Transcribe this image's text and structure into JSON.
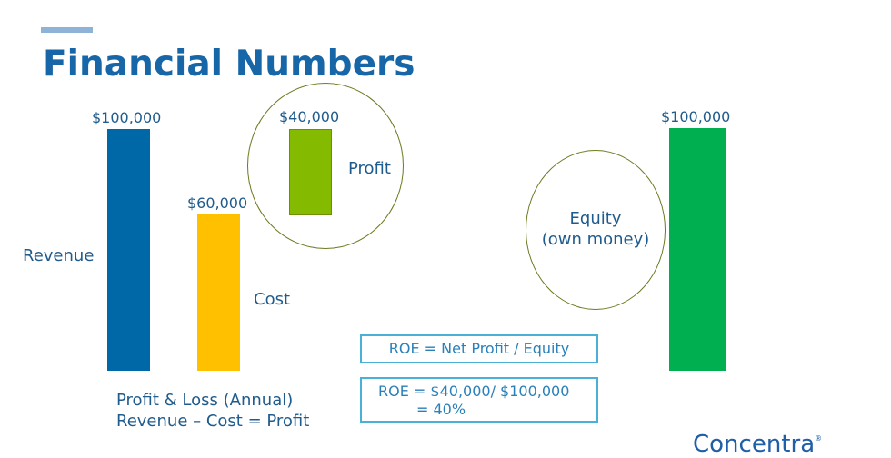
{
  "title": "Financial Numbers",
  "chart_data": {
    "type": "bar",
    "title": "",
    "groups": [
      {
        "name": "Profit & Loss (Annual)",
        "categories": [
          "Revenue",
          "Cost",
          "Profit"
        ],
        "values": [
          100000,
          60000,
          40000
        ],
        "value_labels": [
          "$100,000",
          "$60,000",
          "$40,000"
        ]
      },
      {
        "name": "Equity",
        "categories": [
          "Equity"
        ],
        "values": [
          100000
        ],
        "value_labels": [
          "$100,000"
        ]
      }
    ],
    "colors": {
      "Revenue": "#0068a6",
      "Cost": "#ffc000",
      "Profit": "#84bb00",
      "Equity": "#00b050"
    }
  },
  "labels": {
    "revenue": "Revenue",
    "cost": "Cost",
    "profit": "Profit",
    "equity_line1": "Equity",
    "equity_line2": "(own money)",
    "revenue_value": "$100,000",
    "cost_value": "$60,000",
    "profit_value": "$40,000",
    "equity_value": "$100,000"
  },
  "pl_caption": {
    "line1": "Profit & Loss (Annual)",
    "line2": "Revenue – Cost = Profit"
  },
  "formula_box": {
    "formula": "ROE = Net Profit / Equity",
    "calc_line1": "ROE = $40,000/ $100,000",
    "calc_line2": "= 40%"
  },
  "logo": {
    "text": "Concentra",
    "mark": "®"
  }
}
